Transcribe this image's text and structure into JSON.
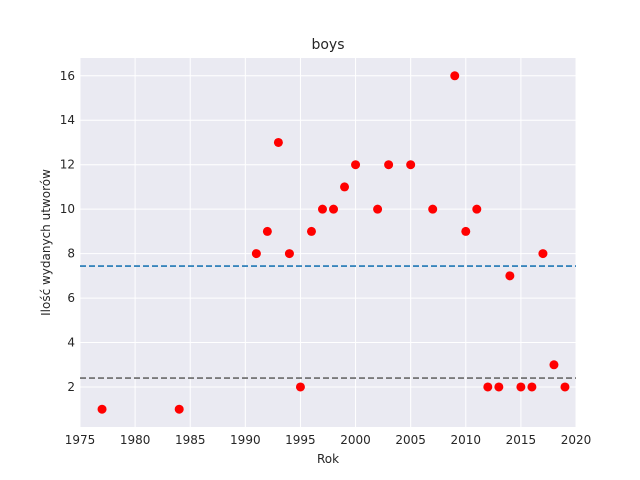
{
  "chart_data": {
    "type": "scatter",
    "title": "boys",
    "xlabel": "Rok",
    "ylabel": "Ilość wydanych utworów",
    "xlim": [
      1975,
      2020
    ],
    "ylim": [
      0.2,
      16.8
    ],
    "xticks": [
      1975,
      1980,
      1985,
      1990,
      1995,
      2000,
      2005,
      2010,
      2015,
      2020
    ],
    "yticks": [
      2,
      4,
      6,
      8,
      10,
      12,
      14,
      16
    ],
    "grid": true,
    "background": "#eaeaf2",
    "series": [
      {
        "color": "#ff0000",
        "x": [
          1977,
          1984,
          1991,
          1992,
          1993,
          1994,
          1995,
          1996,
          1997,
          1998,
          1999,
          2000,
          2002,
          2003,
          2005,
          2007,
          2009,
          2010,
          2011,
          2012,
          2013,
          2014,
          2015,
          2016,
          2017,
          2018,
          2019
        ],
        "y": [
          1,
          1,
          8,
          9,
          13,
          8,
          2,
          9,
          10,
          10,
          11,
          12,
          10,
          12,
          12,
          10,
          16,
          9,
          10,
          2,
          2,
          7,
          2,
          2,
          8,
          3,
          2
        ]
      }
    ],
    "hlines": [
      {
        "y": 7.44,
        "color": "#1f77b4",
        "style": "dashed"
      },
      {
        "y": 2.4,
        "color": "#696969",
        "style": "dashed"
      }
    ]
  }
}
